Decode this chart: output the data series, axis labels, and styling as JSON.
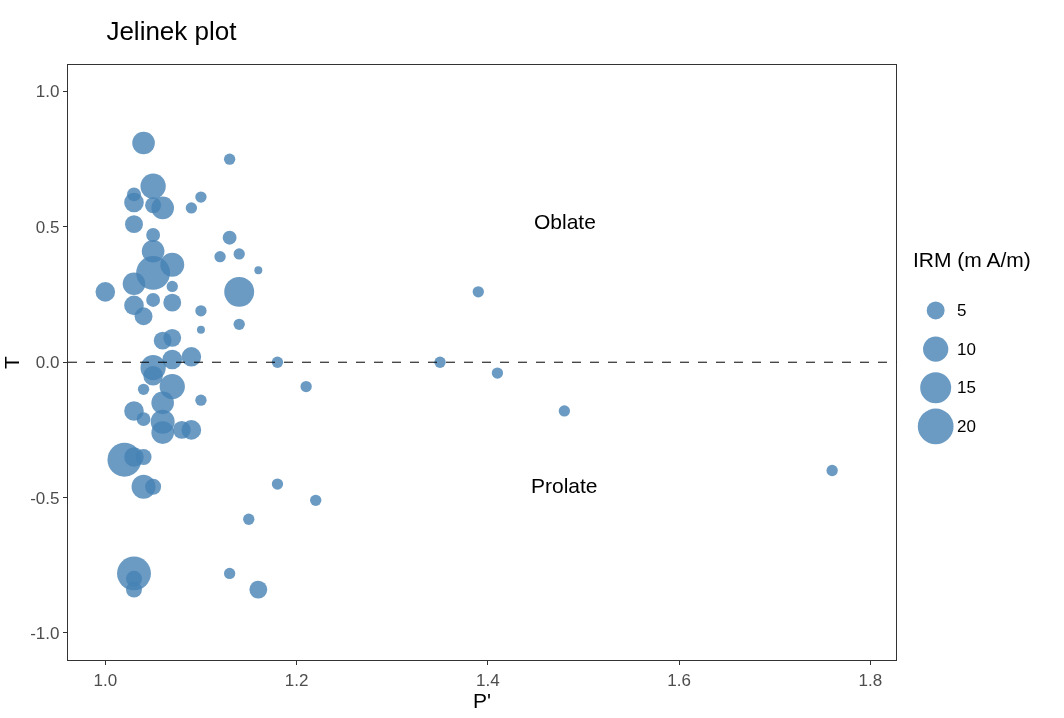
{
  "chart_data": {
    "type": "bubble",
    "title": "Jelinek plot",
    "xlabel": "P'",
    "ylabel": "T",
    "legend_title": "IRM (m A/m)",
    "x": [
      1.04,
      1.13,
      1.05,
      1.03,
      1.03,
      1.06,
      1.05,
      1.09,
      1.1,
      1.03,
      1.05,
      1.13,
      1.12,
      1.14,
      1.16,
      1.05,
      1.07,
      1.05,
      1.03,
      1.0,
      1.14,
      1.07,
      1.05,
      1.07,
      1.03,
      1.04,
      1.1,
      1.14,
      1.1,
      1.06,
      1.07,
      1.09,
      1.18,
      1.35,
      1.05,
      1.07,
      1.05,
      1.07,
      1.04,
      1.1,
      1.21,
      1.41,
      1.48,
      1.03,
      1.06,
      1.04,
      1.06,
      1.06,
      1.08,
      1.09,
      1.02,
      1.03,
      1.04,
      1.04,
      1.05,
      1.18,
      1.22,
      1.15,
      1.13,
      1.03,
      1.03,
      1.03,
      1.16,
      1.76,
      1.39
    ],
    "values": [
      0.81,
      0.75,
      0.65,
      0.62,
      0.59,
      0.57,
      0.58,
      0.57,
      0.61,
      0.51,
      0.47,
      0.46,
      0.39,
      0.4,
      0.34,
      0.41,
      0.36,
      0.33,
      0.29,
      0.26,
      0.26,
      0.28,
      0.23,
      0.22,
      0.21,
      0.17,
      0.19,
      0.14,
      0.12,
      0.08,
      0.09,
      0.02,
      0.0,
      0.0,
      -0.02,
      0.01,
      -0.05,
      -0.09,
      -0.1,
      -0.14,
      -0.09,
      -0.04,
      -0.18,
      -0.18,
      -0.15,
      -0.21,
      -0.22,
      -0.26,
      -0.25,
      -0.25,
      -0.36,
      -0.35,
      -0.35,
      -0.46,
      -0.46,
      -0.45,
      -0.51,
      -0.58,
      -0.78,
      -0.78,
      -0.8,
      -0.84,
      -0.84,
      -0.4,
      0.26
    ],
    "sizes": [
      8,
      2,
      10,
      3,
      6,
      8,
      4,
      2,
      2,
      5,
      3,
      3,
      2,
      2,
      1,
      8,
      9,
      18,
      8,
      6,
      14,
      2,
      3,
      5,
      6,
      5,
      2,
      2,
      1,
      5,
      5,
      6,
      2,
      2,
      10,
      6,
      6,
      10,
      2,
      2,
      2,
      2,
      2,
      6,
      8,
      3,
      9,
      8,
      5,
      6,
      18,
      6,
      4,
      9,
      4,
      2,
      2,
      2,
      2,
      18,
      4,
      4,
      5,
      2,
      2
    ],
    "size_legend": [
      5,
      10,
      15,
      20
    ],
    "color": "#4682b4",
    "xlim": [
      0.961,
      1.827
    ],
    "xticks": [
      {
        "value": 1.0,
        "label": "1.0"
      },
      {
        "value": 1.2,
        "label": "1.2"
      },
      {
        "value": 1.4,
        "label": "1.4"
      },
      {
        "value": 1.6,
        "label": "1.6"
      },
      {
        "value": 1.8,
        "label": "1.8"
      }
    ],
    "ylim": [
      -1.1,
      1.098
    ],
    "yticks": [
      {
        "value": -1.0,
        "label": "-1.0"
      },
      {
        "value": -0.5,
        "label": "-0.5"
      },
      {
        "value": 0.0,
        "label": "0.0"
      },
      {
        "value": 0.5,
        "label": "0.5"
      },
      {
        "value": 1.0,
        "label": "1.0"
      }
    ],
    "ref_lines": [
      {
        "axis": "y",
        "value": 0,
        "color": "#000000",
        "line_style": "dashed"
      }
    ],
    "annotations": [
      "Oblate",
      "Prolate"
    ],
    "line_style": "none"
  }
}
